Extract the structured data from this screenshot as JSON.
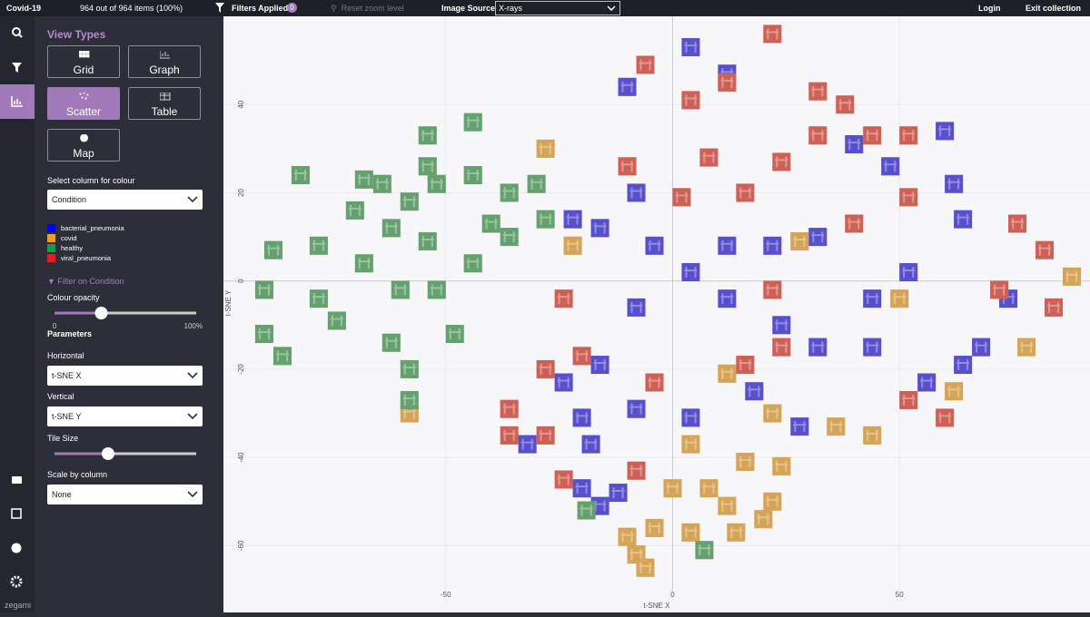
{
  "topbar": {
    "title": "Covid-19",
    "count": "964 out of 964 items (100%)",
    "filters": "Filters Applied:",
    "filter_count": "0",
    "reset": "Reset zoom level",
    "image_source_label": "Image Source",
    "image_source": "X-rays",
    "login": "Login",
    "exit": "Exit collection"
  },
  "panel": {
    "view_types_title": "View Types",
    "views": [
      "Grid",
      "Graph",
      "Scatter",
      "Table",
      "Map"
    ],
    "active_view": 2,
    "colour_label": "Select column for colour",
    "colour_column": "Condition",
    "filter": "Filter on Condition",
    "opacity_label": "Colour opacity",
    "opacity": {
      "min": 0,
      "max": {
        "value": 100,
        "label": "100%"
      },
      "value": 33
    },
    "parameters": "Parameters",
    "horizontal_label": "Horizontal",
    "horizontal": "t-SNE X",
    "vertical_label": "Vertical",
    "vertical": "t-SNE Y",
    "tile_size_label": "Tile Size",
    "scale_label": "Scale by column",
    "scale": "None"
  },
  "footer": "zegami",
  "plot": {
    "type": "scatter",
    "xlabel": "t-SNE X",
    "ylabel": "t-SNE Y",
    "xlim": [
      -99,
      92
    ],
    "ylim": [
      -70,
      60
    ],
    "xticks": [
      -50,
      0,
      50
    ],
    "yticks": [
      -60,
      -40,
      -20,
      0,
      20,
      40
    ],
    "series": [
      {
        "name": "bacterial_pneumonia",
        "color": "#0000ff",
        "x": [
          -10,
          4,
          12,
          40,
          60,
          -8,
          -22,
          -16,
          -4,
          12,
          22,
          32,
          48,
          62,
          64,
          52,
          44,
          74,
          68,
          64,
          56,
          44,
          32,
          24,
          12,
          4,
          -8,
          -16,
          -24,
          -20,
          -8,
          4,
          18,
          28,
          -32,
          -18,
          -20,
          -12,
          -16
        ],
        "y": [
          44,
          53,
          47,
          31,
          34,
          20,
          14,
          12,
          8,
          8,
          8,
          10,
          26,
          22,
          14,
          2,
          -4,
          -4,
          -15,
          -19,
          -23,
          -15,
          -15,
          -10,
          -4,
          2,
          -6,
          -19,
          -23,
          -31,
          -29,
          -31,
          -25,
          -33,
          -37,
          -37,
          -47,
          -48,
          -51
        ]
      },
      {
        "name": "covid",
        "color": "#f0a020",
        "x": [
          -28,
          -22,
          28,
          50,
          78,
          88,
          12,
          22,
          36,
          44,
          4,
          16,
          24,
          0,
          8,
          12,
          22,
          -4,
          4,
          -8,
          -6,
          -10,
          14,
          20,
          -58,
          62
        ],
        "y": [
          30,
          8,
          9,
          -4,
          -15,
          1,
          -21,
          -30,
          -33,
          -35,
          -37,
          -41,
          -42,
          -47,
          -47,
          -51,
          -50,
          -56,
          -57,
          -62,
          -65,
          -58,
          -57,
          -54,
          -30,
          -25
        ]
      },
      {
        "name": "healthy",
        "color": "#1a9a50",
        "x": [
          -44,
          -54,
          -68,
          -82,
          -88,
          -90,
          -90,
          -86,
          -78,
          -74,
          -68,
          -62,
          -58,
          -52,
          -44,
          -36,
          -30,
          -40,
          -44,
          -54,
          -60,
          -62,
          -58,
          -58,
          -48,
          -52,
          -36,
          -28,
          -70,
          -78,
          -64,
          -54,
          7,
          -19
        ],
        "y": [
          36,
          33,
          23,
          24,
          7,
          -2,
          -12,
          -17,
          -4,
          -9,
          4,
          12,
          18,
          22,
          24,
          20,
          22,
          13,
          4,
          9,
          -2,
          -14,
          -20,
          -27,
          -12,
          -2,
          10,
          14,
          16,
          8,
          22,
          26,
          -61,
          -52
        ]
      },
      {
        "name": "viral_pneumonia",
        "color": "#e02020",
        "x": [
          4,
          22,
          -6,
          12,
          32,
          38,
          8,
          24,
          32,
          44,
          52,
          -10,
          2,
          16,
          40,
          52,
          76,
          82,
          72,
          84,
          -24,
          -20,
          -28,
          -36,
          -36,
          -28,
          -4,
          16,
          24,
          52,
          60,
          -24,
          -8,
          22
        ],
        "y": [
          41,
          56,
          49,
          45,
          43,
          40,
          28,
          27,
          33,
          33,
          33,
          26,
          19,
          20,
          13,
          19,
          13,
          7,
          -2,
          -6,
          -4,
          -17,
          -20,
          -29,
          -35,
          -35,
          -23,
          -19,
          -15,
          -27,
          -31,
          -45,
          -43,
          -2
        ]
      }
    ]
  }
}
